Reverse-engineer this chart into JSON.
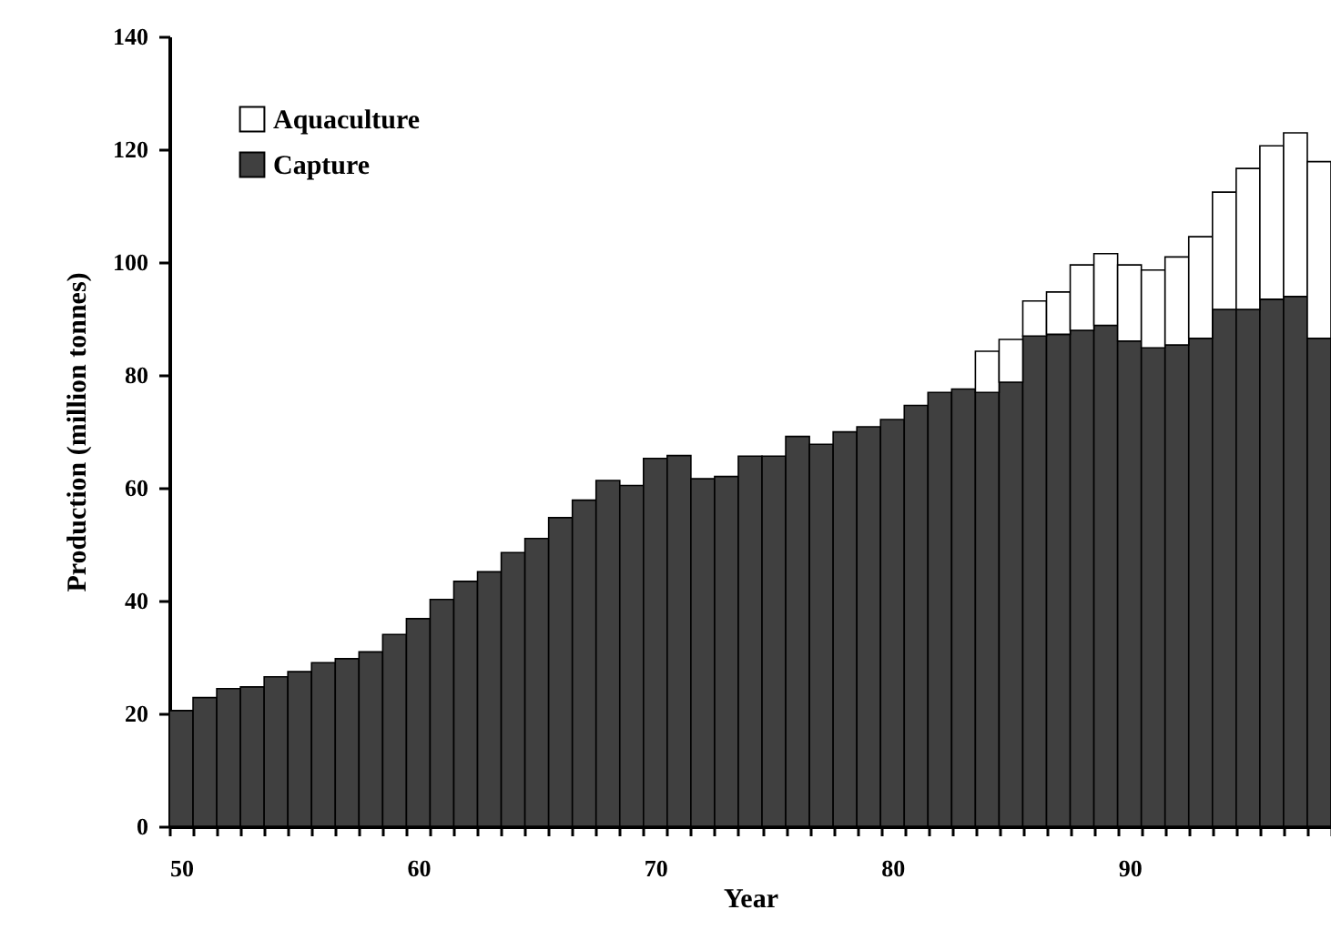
{
  "chart_data": {
    "type": "bar",
    "stacked": true,
    "xlabel": "Year",
    "ylabel": "Production (million tonnes)",
    "categories": [
      "50",
      null,
      null,
      null,
      null,
      null,
      null,
      null,
      null,
      null,
      "60",
      null,
      null,
      null,
      null,
      null,
      null,
      null,
      null,
      null,
      "70",
      null,
      null,
      null,
      null,
      null,
      null,
      null,
      null,
      null,
      "80",
      null,
      null,
      null,
      null,
      null,
      null,
      null,
      null,
      null,
      "90",
      null,
      null,
      null,
      null,
      null,
      null,
      null,
      null
    ],
    "series": [
      {
        "name": "Capture",
        "color": "#404040",
        "values": [
          20.5,
          22.8,
          24.4,
          24.7,
          26.5,
          27.4,
          29.0,
          29.7,
          30.9,
          34.0,
          36.8,
          40.2,
          43.4,
          45.1,
          48.5,
          51.0,
          54.7,
          57.8,
          61.3,
          60.4,
          65.2,
          65.7,
          61.6,
          62.0,
          65.6,
          65.6,
          69.1,
          67.7,
          69.9,
          70.8,
          72.1,
          74.6,
          76.9,
          77.5,
          76.9,
          78.7,
          86.9,
          87.2,
          87.9,
          88.8,
          86.0,
          84.8,
          85.3,
          86.5,
          91.6,
          91.6,
          93.4,
          93.9,
          86.5
        ]
      },
      {
        "name": "Aquaculture",
        "color": "#ffffff",
        "values": [
          null,
          null,
          null,
          null,
          null,
          null,
          null,
          null,
          null,
          null,
          null,
          null,
          null,
          null,
          null,
          null,
          null,
          null,
          null,
          null,
          null,
          null,
          null,
          null,
          null,
          null,
          null,
          null,
          null,
          null,
          null,
          null,
          null,
          null,
          7.3,
          7.6,
          6.2,
          7.5,
          11.6,
          12.7,
          13.5,
          13.8,
          15.6,
          18.0,
          20.8,
          25.0,
          27.2,
          29.0,
          31.3
        ]
      }
    ],
    "ylim": [
      0,
      140
    ],
    "yticks": [
      0,
      20,
      40,
      60,
      80,
      100,
      120,
      140
    ],
    "legend": "top left"
  }
}
